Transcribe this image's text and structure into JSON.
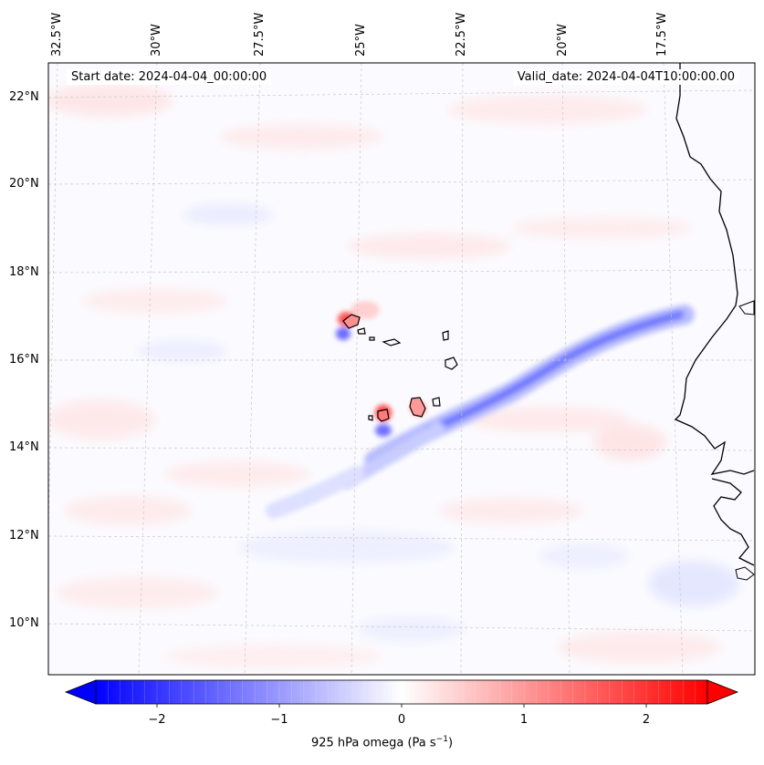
{
  "map": {
    "start_label": "Start date: 2024-04-04_00:00:00",
    "valid_label": "Valid_date: 2024-04-04T10:00:00.00",
    "field": "925 hPa omega",
    "longitude_labels": [
      "32.5°W",
      "30°W",
      "27.5°W",
      "25°W",
      "22.5°W",
      "20°W",
      "17.5°W"
    ],
    "latitude_labels": [
      "22°N",
      "20°N",
      "18°N",
      "16°N",
      "14°N",
      "12°N",
      "10°N"
    ],
    "extent": {
      "lon_min": -33.0,
      "lon_max": -15.5,
      "lat_min": 8.8,
      "lat_max": 22.8
    }
  },
  "colorbar": {
    "label_text": "925 hPa omega (Pa s",
    "label_exponent": "−1",
    "label_close": ")",
    "ticks": [
      {
        "value": -2,
        "text": "−2"
      },
      {
        "value": -1,
        "text": "−1"
      },
      {
        "value": 0,
        "text": "0"
      },
      {
        "value": 1,
        "text": "1"
      },
      {
        "value": 2,
        "text": "2"
      }
    ],
    "vmin": -2.5,
    "vmax": 2.5,
    "extend": "both",
    "cmap": "bwr",
    "color_low": "#0000ff",
    "color_mid": "#ffffff",
    "color_high": "#ff0000"
  },
  "colors": {
    "coastline": "#000000",
    "gridline": "#c8c8c8",
    "background": "#ffffff"
  }
}
